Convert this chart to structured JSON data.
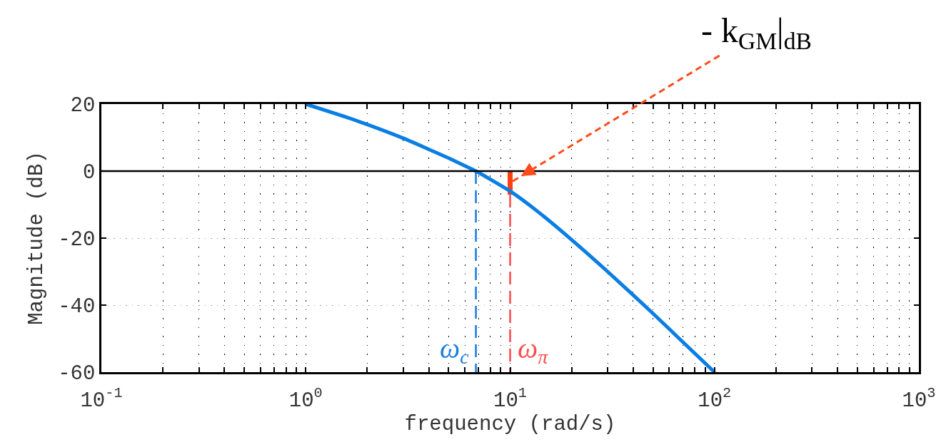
{
  "chart_data": {
    "type": "line",
    "xlabel": "frequency (rad/s)",
    "ylabel": "Magnitude (dB)",
    "log": "x",
    "grid": true,
    "xlim": [
      0.1,
      1000
    ],
    "ylim": [
      -60,
      20
    ],
    "xticks": [
      {
        "value": 0.1,
        "label": "10$^{-1}$"
      },
      {
        "value": 0.2,
        "label": null
      },
      {
        "value": 0.3,
        "label": null
      },
      {
        "value": 0.4,
        "label": null
      },
      {
        "value": 0.5,
        "label": null
      },
      {
        "value": 0.6,
        "label": null
      },
      {
        "value": 0.7,
        "label": null
      },
      {
        "value": 0.8,
        "label": null
      },
      {
        "value": 0.9,
        "label": null
      },
      {
        "value": 1,
        "label": "10$^{0}$"
      },
      {
        "value": 2,
        "label": null
      },
      {
        "value": 3,
        "label": null
      },
      {
        "value": 4,
        "label": null
      },
      {
        "value": 5,
        "label": null
      },
      {
        "value": 6,
        "label": null
      },
      {
        "value": 7,
        "label": null
      },
      {
        "value": 8,
        "label": null
      },
      {
        "value": 9,
        "label": null
      },
      {
        "value": 10,
        "label": "10$^{1}$"
      },
      {
        "value": 20,
        "label": null
      },
      {
        "value": 30,
        "label": null
      },
      {
        "value": 40,
        "label": null
      },
      {
        "value": 50,
        "label": null
      },
      {
        "value": 60,
        "label": null
      },
      {
        "value": 70,
        "label": null
      },
      {
        "value": 80,
        "label": null
      },
      {
        "value": 90,
        "label": null
      },
      {
        "value": 100,
        "label": "10$^{2}$"
      },
      {
        "value": 200,
        "label": null
      },
      {
        "value": 300,
        "label": null
      },
      {
        "value": 400,
        "label": null
      },
      {
        "value": 500,
        "label": null
      },
      {
        "value": 600,
        "label": null
      },
      {
        "value": 700,
        "label": null
      },
      {
        "value": 800,
        "label": null
      },
      {
        "value": 900,
        "label": null
      },
      {
        "value": 1000,
        "label": "10$^{3}$"
      }
    ],
    "yticks": [
      -60,
      -40,
      -20,
      0,
      20
    ],
    "series": [
      {
        "color": "#0a7ee3",
        "x": [
          1,
          1.6,
          2,
          3,
          4,
          5,
          6,
          6.8,
          10,
          13.6,
          20,
          30,
          40,
          50,
          70,
          100
        ],
        "values": [
          20,
          16,
          13.9,
          9.8,
          6.5,
          3.9,
          1.6,
          0,
          -6,
          -12,
          -20.5,
          -30,
          -37,
          -42.5,
          -51,
          -60
        ]
      },
      {
        "name": "ω$_{c}$",
        "color": "#1a7fe0",
        "x": [
          6.8,
          6.8
        ],
        "values": [
          0,
          -60
        ],
        "line_style": "dashed"
      },
      {
        "name": "ω$_{π}$",
        "color": "#ff4d4d",
        "x": [
          10,
          10
        ],
        "values": [
          -7,
          -60
        ],
        "line_style": "dashed"
      },
      {
        "type": "bar",
        "color": "#ff4010",
        "x": [
          10
        ],
        "values": [
          -7
        ]
      }
    ],
    "ref_lines": [
      {
        "axis": "y",
        "value": 0,
        "color": "#000000"
      }
    ],
    "annotations": [
      {
        "text": "- k$_{GM}$|$_{dB}$",
        "x": 10,
        "y": -3.5
      }
    ]
  }
}
